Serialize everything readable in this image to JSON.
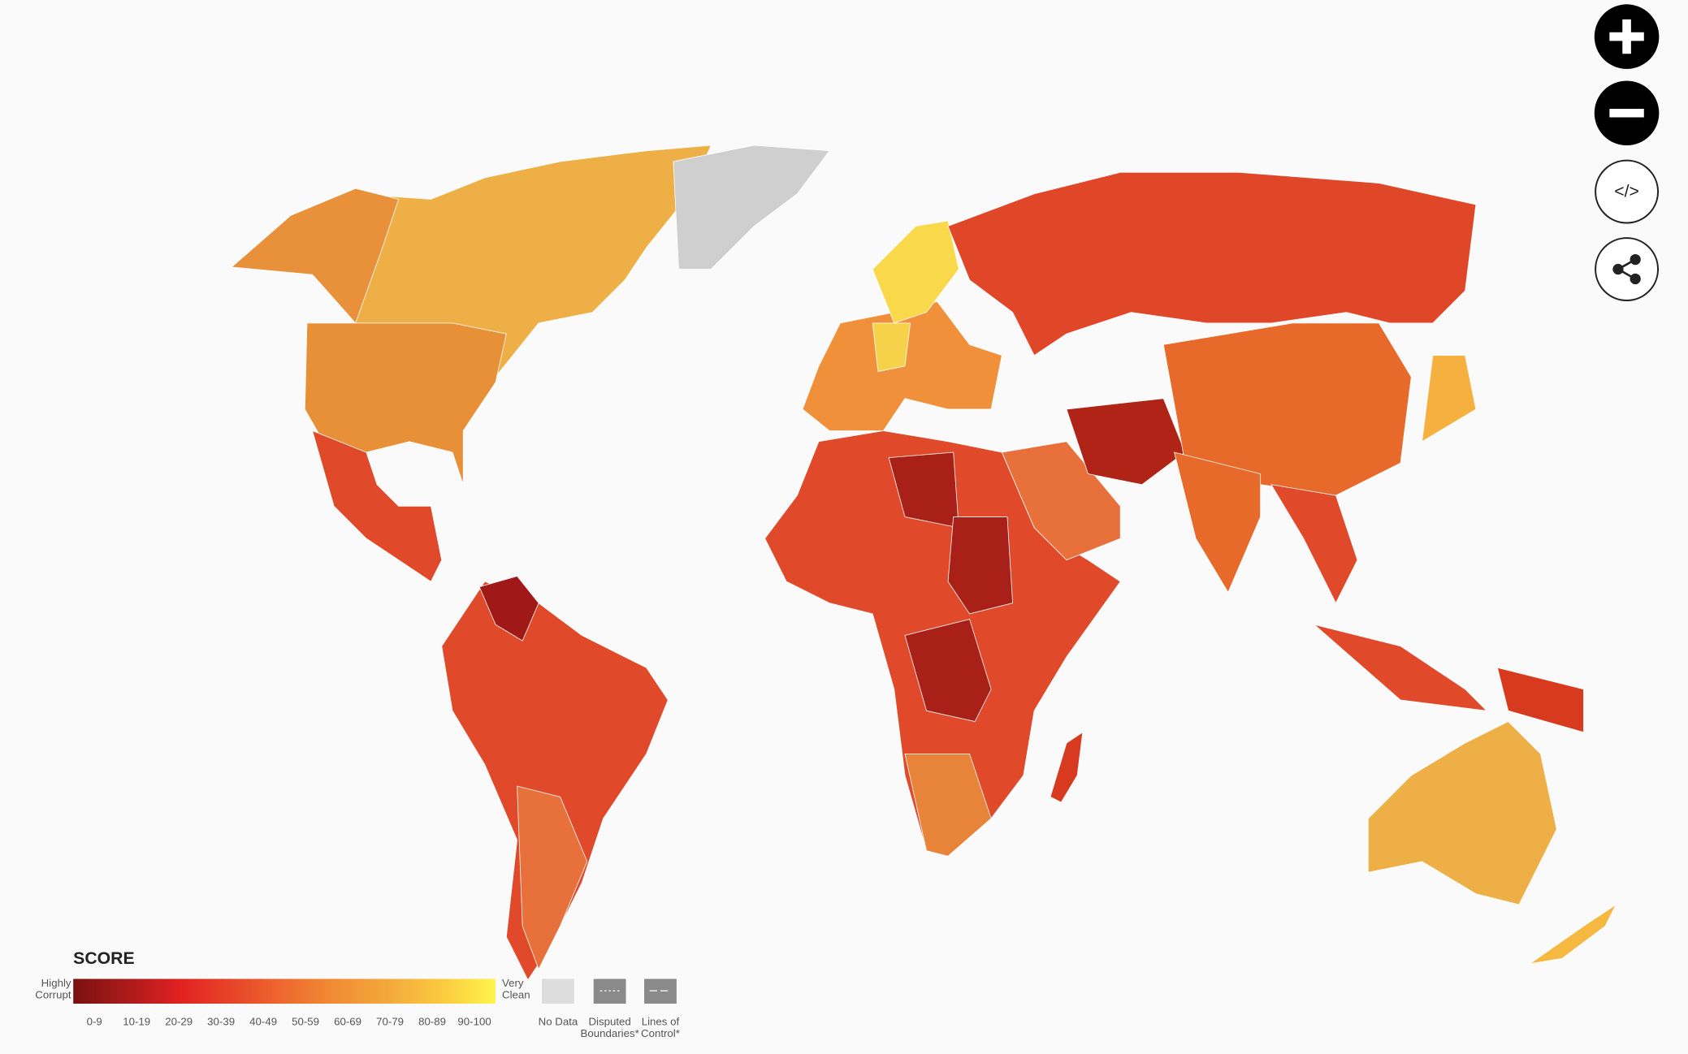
{
  "controls": {
    "embed": "</>"
  },
  "legend": {
    "title": "SCORE",
    "low_label": "Highly Corrupt",
    "high_label": "Very Clean",
    "bins": [
      "0-9",
      "10-19",
      "20-29",
      "30-39",
      "40-49",
      "50-59",
      "60-69",
      "70-79",
      "80-89",
      "90-100"
    ],
    "extras": [
      "No Data",
      "Disputed Boundaries*",
      "Lines of Control*"
    ]
  }
}
